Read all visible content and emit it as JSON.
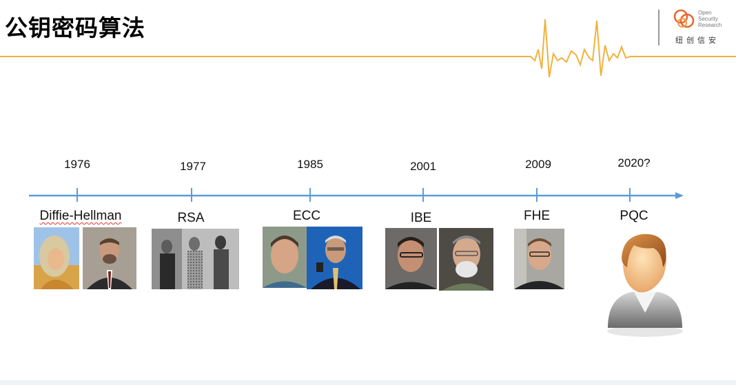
{
  "slide": {
    "title": "公钥密码算法",
    "logo": {
      "name": "Open Security Research",
      "line1": "Open",
      "line2": "Security",
      "line3": "Research",
      "cn_name": "纽创信安"
    }
  },
  "timeline": {
    "events": [
      {
        "year": "1976",
        "label": "Diffie-Hellman",
        "photos": [
          "portrait-long-hair-man",
          "portrait-bearded-man-suit"
        ]
      },
      {
        "year": "1977",
        "label": "RSA",
        "photos": [
          "group-photo-three-men"
        ]
      },
      {
        "year": "1985",
        "label": "ECC",
        "photos": [
          "portrait-man-tie",
          "portrait-man-glasses-podium"
        ]
      },
      {
        "year": "2001",
        "label": "IBE",
        "photos": [
          "portrait-man-glasses",
          "portrait-bearded-man-glasses"
        ]
      },
      {
        "year": "2009",
        "label": "FHE",
        "photos": [
          "portrait-young-man-glasses"
        ]
      },
      {
        "year": "2020?",
        "label": "PQC",
        "photos": [
          "unknown-person-icon"
        ]
      }
    ]
  },
  "colors": {
    "accent_line": "#f0b23c",
    "timeline_blue": "#5b9bd5",
    "logo_orange": "#e8652e"
  }
}
